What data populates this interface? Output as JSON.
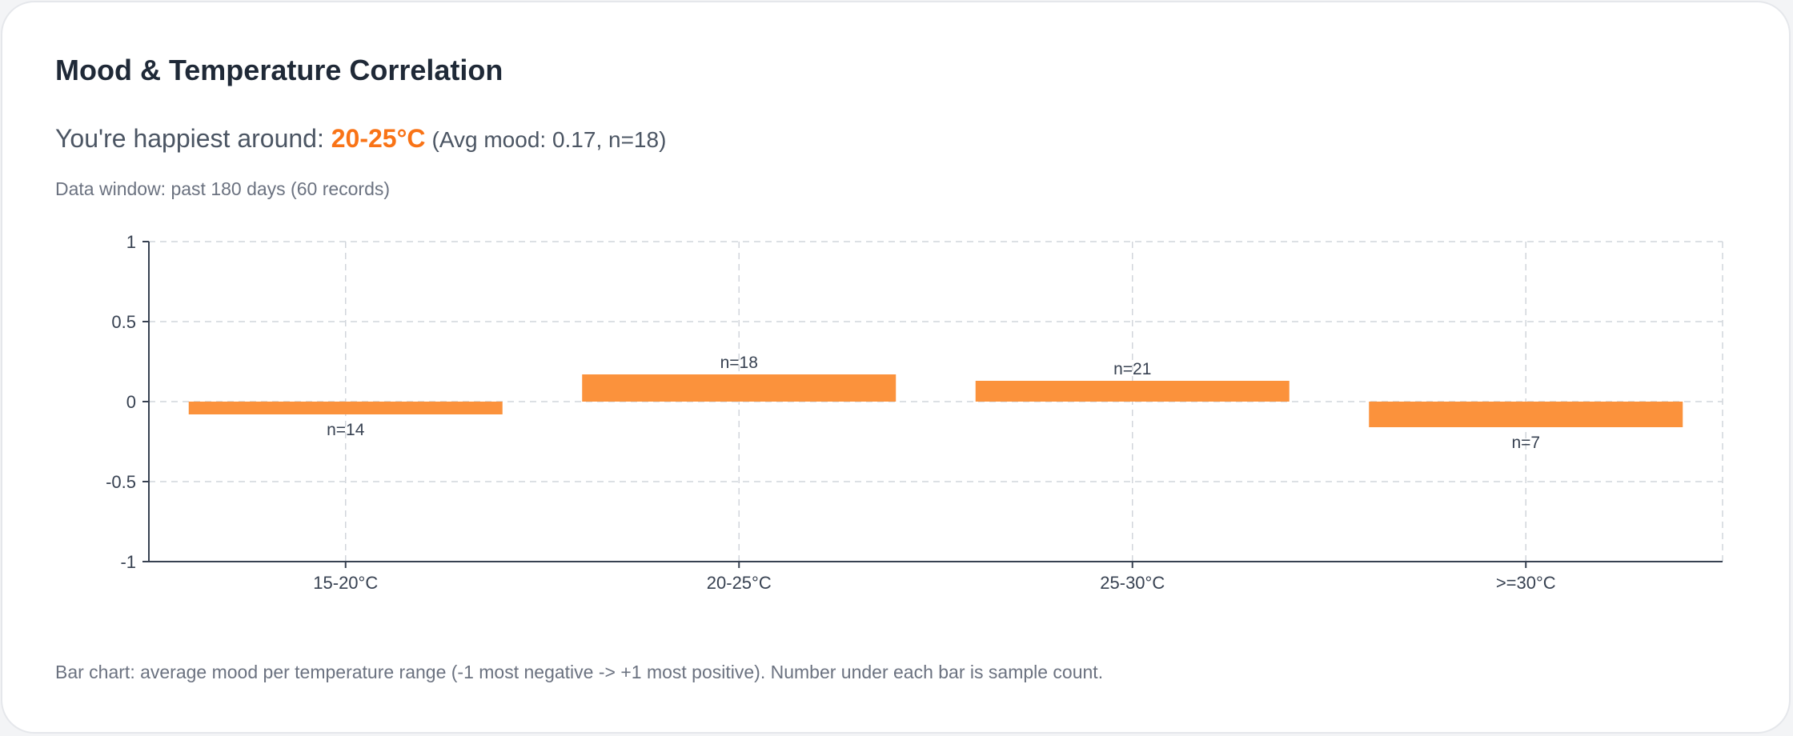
{
  "card": {
    "title": "Mood & Temperature Correlation",
    "happiest_prefix": "You're happiest around: ",
    "happiest_range": "20-25°C",
    "happiest_stats": "(Avg mood: 0.17, n=18)",
    "data_window": "Data window: past 180 days (60 records)",
    "caption": "Bar chart: average mood per temperature range (-1 most negative -> +1 most positive). Number under each bar is sample count."
  },
  "colors": {
    "bar": "#fb923c",
    "accent": "#f97316",
    "axis": "#374151",
    "grid": "#d1d5db"
  },
  "chart_data": {
    "type": "bar",
    "categories": [
      "15-20°C",
      "20-25°C",
      "25-30°C",
      ">=30°C"
    ],
    "values": [
      -0.08,
      0.17,
      0.13,
      -0.16
    ],
    "counts": [
      "n=14",
      "n=18",
      "n=21",
      "n=7"
    ],
    "ylim": [
      -1,
      1
    ],
    "yticks": [
      1,
      0.5,
      0,
      -0.5,
      -1
    ],
    "ytick_labels": [
      "1",
      "0.5",
      "0",
      "-0.5",
      "-1"
    ],
    "grid": true,
    "legend": "none"
  }
}
